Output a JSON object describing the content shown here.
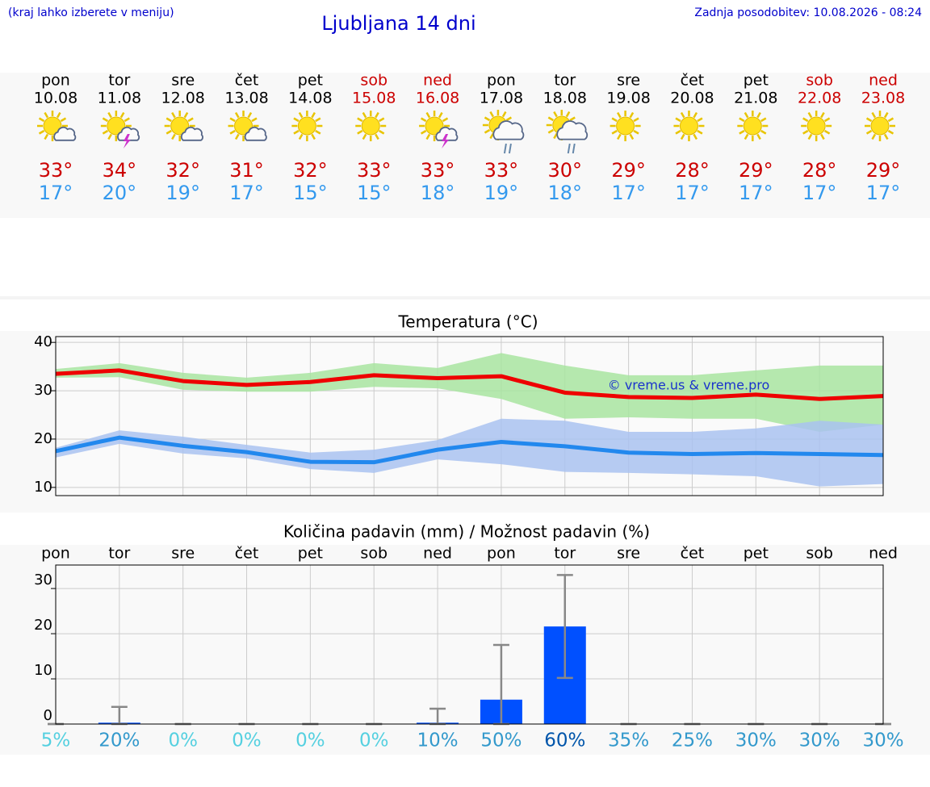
{
  "header": {
    "note": "(kraj lahko izberete v meniju)",
    "title": "Ljubljana 14 dni",
    "updated": "Zadnja posodobitev: 10.08.2026 - 08:24"
  },
  "days": [
    {
      "day": "pon",
      "date": "10.08",
      "icon": "sun-cloud",
      "max": "33°",
      "min": "17°",
      "color": "#000000"
    },
    {
      "day": "tor",
      "date": "11.08",
      "icon": "storm",
      "max": "34°",
      "min": "20°",
      "color": "#000000"
    },
    {
      "day": "sre",
      "date": "12.08",
      "icon": "sun-cloud",
      "max": "32°",
      "min": "19°",
      "color": "#000000"
    },
    {
      "day": "čet",
      "date": "13.08",
      "icon": "sun-cloud",
      "max": "31°",
      "min": "17°",
      "color": "#000000"
    },
    {
      "day": "pet",
      "date": "14.08",
      "icon": "sun",
      "max": "32°",
      "min": "15°",
      "color": "#000000"
    },
    {
      "day": "sob",
      "date": "15.08",
      "icon": "sun",
      "max": "33°",
      "min": "15°",
      "color": "#cc0000"
    },
    {
      "day": "ned",
      "date": "16.08",
      "icon": "storm",
      "max": "33°",
      "min": "18°",
      "color": "#cc0000"
    },
    {
      "day": "pon",
      "date": "17.08",
      "icon": "rain",
      "max": "33°",
      "min": "19°",
      "color": "#000000"
    },
    {
      "day": "tor",
      "date": "18.08",
      "icon": "rain",
      "max": "30°",
      "min": "18°",
      "color": "#000000"
    },
    {
      "day": "sre",
      "date": "19.08",
      "icon": "sun",
      "max": "29°",
      "min": "17°",
      "color": "#000000"
    },
    {
      "day": "čet",
      "date": "20.08",
      "icon": "sun",
      "max": "28°",
      "min": "17°",
      "color": "#000000"
    },
    {
      "day": "pet",
      "date": "21.08",
      "icon": "sun",
      "max": "29°",
      "min": "17°",
      "color": "#000000"
    },
    {
      "day": "sob",
      "date": "22.08",
      "icon": "sun",
      "max": "28°",
      "min": "17°",
      "color": "#cc0000"
    },
    {
      "day": "ned",
      "date": "23.08",
      "icon": "sun",
      "max": "29°",
      "min": "17°",
      "color": "#cc0000"
    }
  ],
  "chart_data": [
    {
      "type": "line",
      "title": "Temperatura (°C)",
      "annotation": "© vreme.us & vreme.pro",
      "categories": [
        null,
        null,
        null,
        null,
        null,
        null,
        null,
        null,
        null,
        null,
        null,
        null,
        null,
        null
      ],
      "ylim": [
        8.3,
        41.2
      ],
      "yticks": [
        10,
        20,
        30,
        40
      ],
      "grid": true,
      "bands": [
        {
          "color": "#a8e4a0",
          "upper": [
            34.5,
            35.7,
            33.7,
            32.7,
            33.7,
            35.7,
            34.7,
            37.8,
            35.2,
            33.2,
            33.2,
            34.2,
            35.2,
            35.2
          ],
          "lower": [
            32.7,
            32.8,
            30.2,
            29.8,
            29.8,
            30.8,
            30.5,
            28.3,
            24.2,
            24.5,
            24.2,
            24.2,
            21.5,
            23
          ]
        },
        {
          "color": "#a9c2f0",
          "upper": [
            18.2,
            21.8,
            20.5,
            18.8,
            17.2,
            17.8,
            19.8,
            24.2,
            23.8,
            21.5,
            21.5,
            22.2,
            23.8,
            23
          ],
          "lower": [
            16.2,
            19,
            17,
            16,
            13.8,
            13,
            15.8,
            14.8,
            13.2,
            13,
            12.7,
            12.3,
            10.2,
            10.7
          ]
        }
      ],
      "series": [
        {
          "color": "#ee0000",
          "values": [
            33.5,
            34.2,
            32,
            31.2,
            31.8,
            33.2,
            32.6,
            33,
            29.6,
            28.7,
            28.5,
            29.2,
            28.3,
            28.9
          ]
        },
        {
          "color": "#2288ee",
          "values": [
            17.5,
            20.3,
            18.6,
            17.3,
            15.3,
            15.2,
            17.8,
            19.4,
            18.5,
            17.2,
            16.9,
            17.1,
            16.9,
            16.7
          ]
        }
      ]
    },
    {
      "type": "bar",
      "title": "Količina padavin (mm) / Možnost padavin (%)",
      "categories": [
        "pon",
        "tor",
        "sre",
        "čet",
        "pet",
        "sob",
        "ned",
        "pon",
        "tor",
        "sre",
        "čet",
        "pet",
        "sob",
        "ned"
      ],
      "ylim": [
        0,
        35.2
      ],
      "yticks": [
        0,
        10,
        20,
        30
      ],
      "grid": true,
      "color": "#0050ff",
      "error_color": "#888888",
      "values": [
        0,
        0.3,
        0,
        0,
        0,
        0,
        0.3,
        5.4,
        21.6,
        0,
        0,
        0,
        0,
        0
      ],
      "err_low": [
        0,
        0,
        0,
        0,
        0,
        0,
        0,
        0,
        10.2,
        0,
        0,
        0,
        0,
        0
      ],
      "err_high": [
        0,
        3.8,
        0,
        0,
        0,
        0,
        3.4,
        17.5,
        33,
        0,
        0,
        0,
        0,
        0
      ],
      "probability": [
        5,
        20,
        0,
        0,
        0,
        0,
        10,
        50,
        60,
        35,
        25,
        30,
        30,
        30
      ],
      "probability_labels": [
        "5%",
        "20%",
        "0%",
        "0%",
        "0%",
        "0%",
        "10%",
        "50%",
        "60%",
        "35%",
        "25%",
        "30%",
        "30%",
        "30%"
      ]
    }
  ]
}
